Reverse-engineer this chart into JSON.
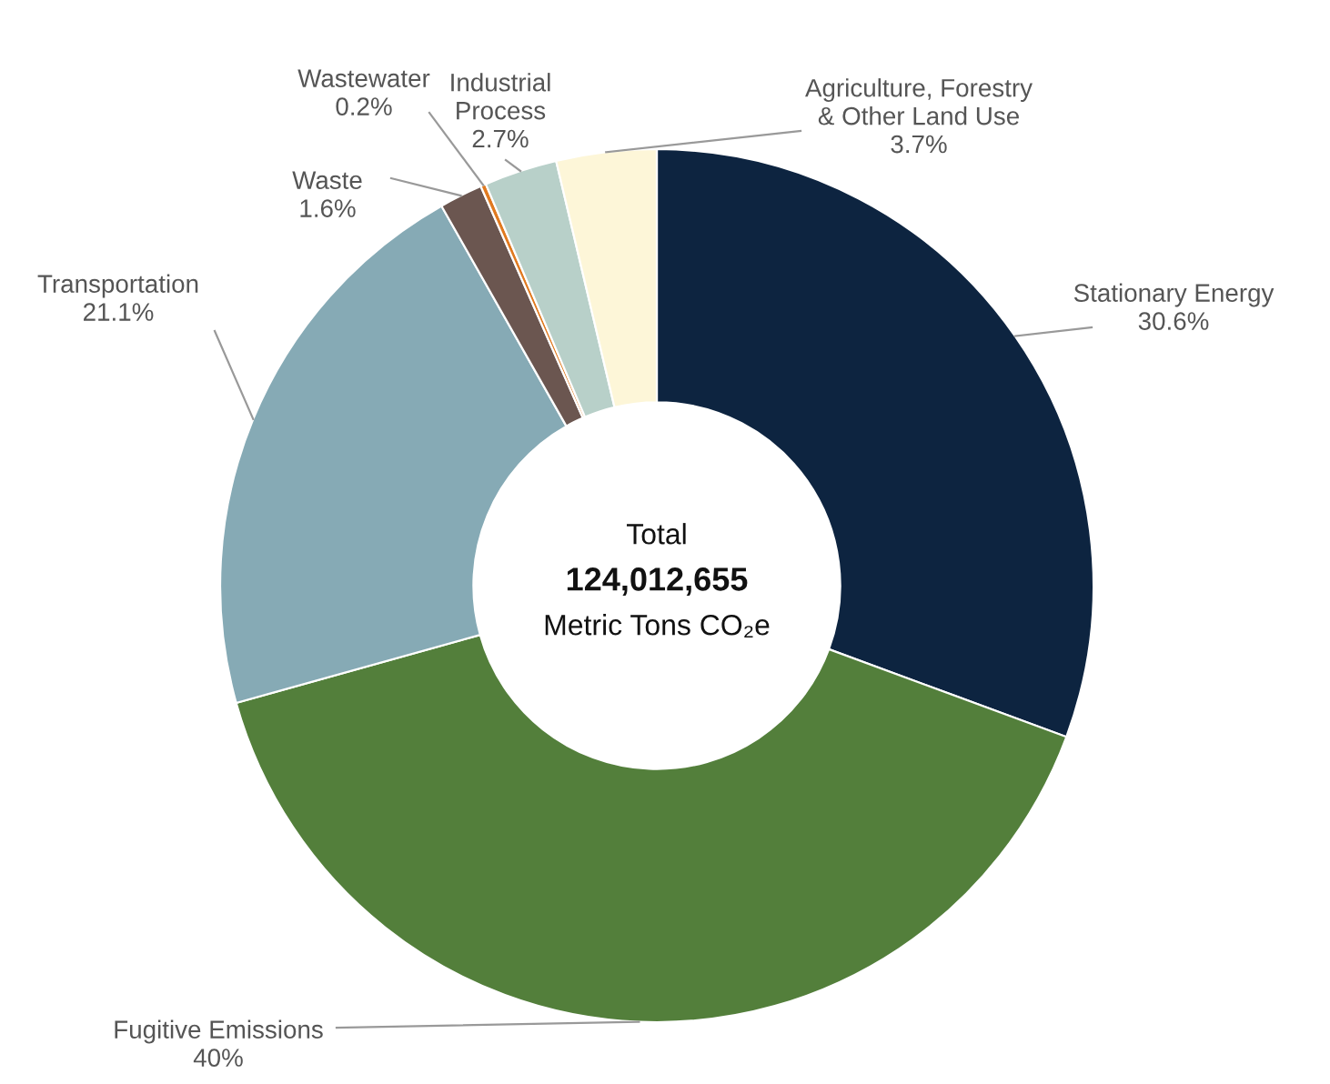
{
  "chart_data": {
    "type": "donut",
    "categories": [
      "Stationary Energy",
      "Fugitive Emissions",
      "Transportation",
      "Waste",
      "Wastewater",
      "Industrial\nProcess",
      "Agriculture, Forestry\n& Other Land Use"
    ],
    "values": [
      30.6,
      40,
      21.1,
      1.6,
      0.2,
      2.7,
      3.7
    ],
    "value_labels": [
      "30.6%",
      "40%",
      "21.1%",
      "1.6%",
      "0.2%",
      "2.7%",
      "3.7%"
    ],
    "colors": [
      "#0d2440",
      "#537f3b",
      "#86aab5",
      "#6b5650",
      "#e07a20",
      "#b8d0c9",
      "#fdf6d8"
    ],
    "annotations": [
      "Total",
      "124,012,655",
      "Metric Tons CO₂e"
    ]
  }
}
